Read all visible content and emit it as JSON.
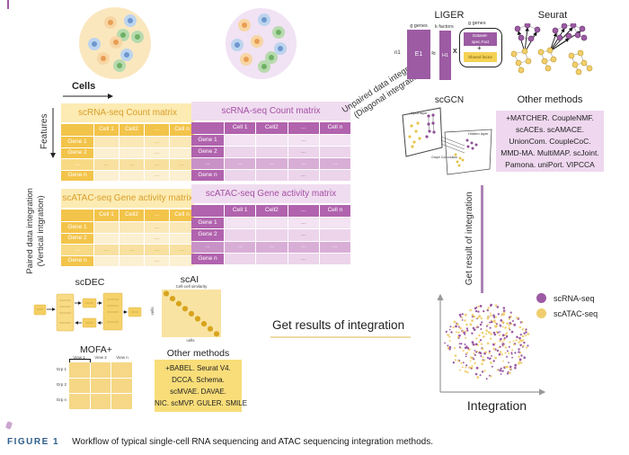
{
  "figure": {
    "caption_label": "FIGURE 1",
    "caption_text": "Workflow of typical single-cell RNA sequencing and ATAC sequencing integration methods."
  },
  "labels": {
    "cells_arrow": "Cells",
    "features_arrow": "Features",
    "paired_line1": "Paired data integration",
    "paired_line2": "(Vertical intgration)",
    "unpaired_line1": "Unpaired data integration",
    "unpaired_line2": "(Diagonal integration)",
    "get_results": "Get results of integration",
    "get_result_vertical": "Get result of integration",
    "integration_axis": "Integration"
  },
  "matrices": {
    "columns": [
      "Cell 1",
      "Cell2",
      "...",
      "Cell n"
    ],
    "rows": [
      "Gene 1",
      "Gene 2",
      "...",
      "Gene n"
    ],
    "dots": "...",
    "rna_title": "scRNA-seq Count matrix",
    "atac_title": "scATAC-seq Gene activity matrix"
  },
  "liger": {
    "title": "LIGER",
    "bar1_top": "g genes",
    "bar1_text": "E1",
    "bar1_side": "n1",
    "approx": "≈",
    "bar2_top": "k factors",
    "bar2_text": "H1",
    "times": "X",
    "bracket_top": "g genes",
    "purple_box_line1": "Dataset-",
    "purple_box_line2": "spec.Fact",
    "plus": "+",
    "yellow_box": "Shared factor"
  },
  "seurat": {
    "title": "Seurat"
  },
  "scgcn": {
    "title": "scGCN",
    "input_layer": "Input layer",
    "hidden_layer": "Hidden layer",
    "graph_conv": "Graph Convolution"
  },
  "other_methods_top": {
    "title": "Other methods",
    "lines": [
      "+MATCHER. CoupleNMF.",
      "scACEs. scAMACE.",
      "UnionCom. CoupleCoC.",
      "MMD-MA. MultiMAP. scJoint.",
      "Pamona. uniPort. VIPCCA"
    ]
  },
  "scdec": {
    "title": "scDEC"
  },
  "scai": {
    "title": "scAI",
    "top_label": "Cell-cell similarity",
    "side_label": "cells",
    "bottom_label": "cells"
  },
  "mofa": {
    "title": "MOFA+",
    "col_labels": [
      "View 1",
      "View 2",
      "View n"
    ],
    "row_labels": [
      "Grp 1",
      "Grp 2",
      "Grp n"
    ]
  },
  "other_methods_bottom": {
    "title": "Other methods",
    "lines": [
      "+BABEL. Seurat V4.",
      "DCCA. Schema.",
      "scMVAE. DAVAE.",
      "NIC. scMVP. GULER. SMILE"
    ]
  },
  "legend": {
    "items": [
      {
        "label": "scRNA-seq",
        "color": "#9C5BA3"
      },
      {
        "label": "scATAC-seq",
        "color": "#F0CE6E"
      }
    ]
  },
  "colors": {
    "purple_main": "#9C5BA3",
    "purple_header": "#B163AE",
    "yellow_header": "#F3C44A",
    "pink_box": "#EFD8EF",
    "yellow_box": "#F8DD79",
    "caption_blue": "#2E5E8E",
    "scatter_purple": "#9C5BA3",
    "scatter_yellow": "#F0CE6E"
  }
}
